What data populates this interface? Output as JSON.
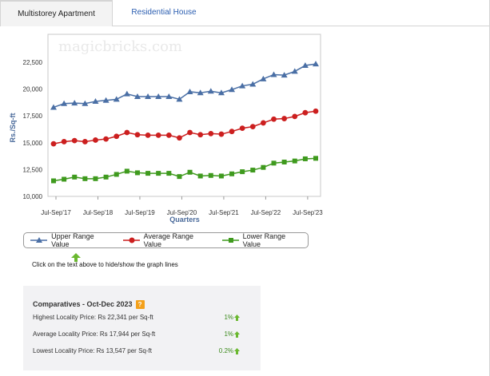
{
  "tabs": [
    {
      "label": "Multistorey Apartment",
      "active": true
    },
    {
      "label": "Residential House",
      "active": false
    }
  ],
  "chart_data": {
    "type": "line",
    "watermark": "magicbricks.com",
    "xlabel": "Quarters",
    "ylabel": "Rs./Sq-ft",
    "ylim": [
      10000,
      23900
    ],
    "yticks": [
      10000,
      12500,
      15000,
      17500,
      20000,
      22500
    ],
    "ytick_labels": [
      "10,000",
      "12,500",
      "15,000",
      "17,500",
      "20,000",
      "22,500"
    ],
    "xtick_labels": [
      "Jul-Sep'17",
      "Jul-Sep'18",
      "Jul-Sep'19",
      "Jul-Sep'20",
      "Jul-Sep'21",
      "Jul-Sep'22",
      "Jul-Sep'23"
    ],
    "xtick_index": [
      0,
      4,
      8,
      12,
      16,
      20,
      24
    ],
    "num_points": 26,
    "grid": false,
    "series": [
      {
        "name": "Upper Range Value",
        "color": "#4a6fa5",
        "marker": "triangle",
        "values": [
          18300,
          18650,
          18700,
          18650,
          18850,
          18950,
          19050,
          19550,
          19300,
          19300,
          19300,
          19300,
          19050,
          19750,
          19650,
          19800,
          19650,
          19950,
          20300,
          20450,
          20950,
          21350,
          21300,
          21650,
          22200,
          22341
        ]
      },
      {
        "name": "Average Range Value",
        "color": "#cc1f1f",
        "marker": "circle",
        "values": [
          14900,
          15100,
          15200,
          15100,
          15250,
          15350,
          15600,
          15950,
          15750,
          15700,
          15700,
          15700,
          15450,
          15950,
          15750,
          15850,
          15800,
          16050,
          16350,
          16500,
          16850,
          17200,
          17250,
          17450,
          17800,
          17944
        ]
      },
      {
        "name": "Lower Range Value",
        "color": "#3f9a1e",
        "marker": "square",
        "values": [
          11450,
          11600,
          11800,
          11650,
          11650,
          11800,
          12050,
          12350,
          12200,
          12150,
          12150,
          12150,
          11850,
          12250,
          11900,
          11950,
          11900,
          12100,
          12300,
          12450,
          12700,
          13100,
          13200,
          13300,
          13500,
          13547
        ]
      }
    ]
  },
  "hint": "Click on the text above to hide/show the graph lines",
  "comparatives": {
    "title": "Comparatives - Oct-Dec 2023",
    "help_icon": "?",
    "rows": [
      {
        "label": "Highest Locality Price: Rs 22,341 per Sq-ft",
        "pct": "1%"
      },
      {
        "label": "Average Locality Price: Rs 17,944 per Sq-ft",
        "pct": "1%"
      },
      {
        "label": "Lowest Locality Price: Rs 13,547 per Sq-ft",
        "pct": "0.2%"
      }
    ]
  }
}
